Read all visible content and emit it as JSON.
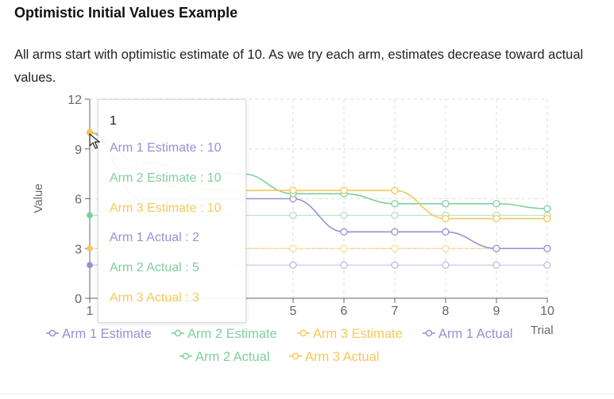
{
  "header": {
    "title": "Optimistic Initial Values Example",
    "description": "All arms start with optimistic estimate of 10. As we try each arm, estimates decrease toward actual values."
  },
  "colors": {
    "arm1": "#9a8fd6",
    "arm2": "#7fcf9c",
    "arm3": "#f5c85a",
    "grid": "#dddddd",
    "axis": "#666666"
  },
  "tooltip": {
    "title": "1",
    "rows": [
      {
        "label": "Arm 1 Estimate : 10",
        "color": "#9a8fd6"
      },
      {
        "label": "Arm 2 Estimate : 10",
        "color": "#7fcf9c"
      },
      {
        "label": "Arm 3 Estimate : 10",
        "color": "#f5c85a"
      },
      {
        "label": "Arm 1 Actual : 2",
        "color": "#9a8fd6"
      },
      {
        "label": "Arm 2 Actual : 5",
        "color": "#7fcf9c"
      },
      {
        "label": "Arm 3 Actual : 3",
        "color": "#f5c85a"
      }
    ]
  },
  "chart_data": {
    "type": "line",
    "x": [
      1,
      2,
      3,
      4,
      5,
      6,
      7,
      8,
      9,
      10
    ],
    "xlabel": "Trial",
    "ylabel": "Value",
    "ylim": [
      0,
      12
    ],
    "yticks": [
      0,
      3,
      6,
      9,
      12
    ],
    "xticks_visible": [
      1,
      5,
      6,
      7,
      8,
      9,
      10
    ],
    "grid": true,
    "legend_position": "bottom",
    "series": [
      {
        "name": "Arm 1 Estimate",
        "color": "#9a8fd6",
        "dashed": false,
        "values": [
          10,
          6,
          6,
          6,
          6,
          4,
          4,
          4,
          3,
          3
        ]
      },
      {
        "name": "Arm 2 Estimate",
        "color": "#7fcf9c",
        "dashed": false,
        "values": [
          10,
          8.2,
          7.8,
          7.5,
          6.3,
          6.3,
          5.7,
          5.7,
          5.7,
          5.4
        ]
      },
      {
        "name": "Arm 3 Estimate",
        "color": "#f5c85a",
        "dashed": false,
        "values": [
          10,
          7,
          6.6,
          6.5,
          6.5,
          6.5,
          6.5,
          4.8,
          4.8,
          4.8
        ]
      },
      {
        "name": "Arm 1 Actual",
        "color": "#9a8fd6",
        "dashed": true,
        "values": [
          2,
          2,
          2,
          2,
          2,
          2,
          2,
          2,
          2,
          2
        ]
      },
      {
        "name": "Arm 2 Actual",
        "color": "#7fcf9c",
        "dashed": true,
        "values": [
          5,
          5,
          5,
          5,
          5,
          5,
          5,
          5,
          5,
          5
        ]
      },
      {
        "name": "Arm 3 Actual",
        "color": "#f5c85a",
        "dashed": true,
        "values": [
          3,
          3,
          3,
          3,
          3,
          3,
          3,
          3,
          3,
          3
        ]
      }
    ]
  }
}
